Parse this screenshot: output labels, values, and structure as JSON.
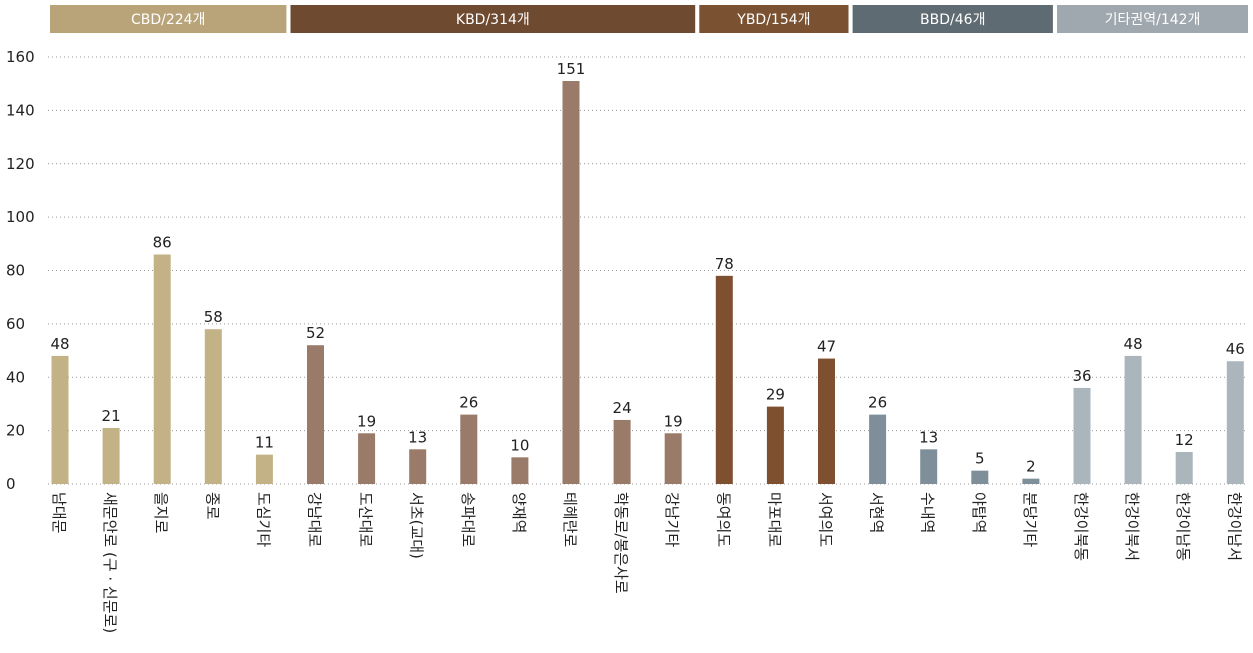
{
  "chart_data": {
    "type": "bar",
    "ylim": [
      0,
      160
    ],
    "yticks": [
      0,
      20,
      40,
      60,
      80,
      100,
      120,
      140,
      160
    ],
    "grid": true,
    "series": [
      {
        "name": "CBD/224개",
        "color": "#c4b287",
        "header_color": "#b9a47a",
        "categories": [
          "남대문",
          "새문안로 (구 · 신문로)",
          "을지로",
          "종로",
          "도심기타"
        ],
        "values": [
          48,
          21,
          86,
          58,
          11
        ]
      },
      {
        "name": "KBD/314개",
        "color": "#9a7a68",
        "header_color": "#6e4a30",
        "categories": [
          "강남대로",
          "도산대로",
          "서초(교대)",
          "송파대로",
          "양재역",
          "테헤란로",
          "학동로/봉은사로",
          "강남기타"
        ],
        "values": [
          52,
          19,
          13,
          26,
          10,
          151,
          24,
          19
        ]
      },
      {
        "name": "YBD/154개",
        "color": "#7e5030",
        "header_color": "#7a5232",
        "categories": [
          "동여의도",
          "마포대로",
          "서여의도"
        ],
        "values": [
          78,
          29,
          47
        ]
      },
      {
        "name": "BBD/46개",
        "color": "#7f8f99",
        "header_color": "#5f6b73",
        "categories": [
          "서현역",
          "수내역",
          "야탑역",
          "분당기타"
        ],
        "values": [
          26,
          13,
          5,
          2
        ]
      },
      {
        "name": "기타권역/142개",
        "color": "#aab5bc",
        "header_color": "#9ea8ae",
        "categories": [
          "한강이북동",
          "한강이북서",
          "한강이남동",
          "한강이남서"
        ],
        "values": [
          36,
          48,
          12,
          46
        ]
      }
    ]
  }
}
